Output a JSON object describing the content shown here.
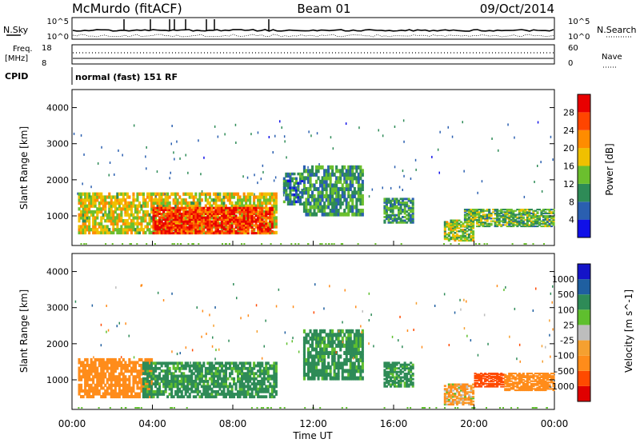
{
  "header": {
    "site": "McMurdo (fitACF)",
    "beam": "Beam 01",
    "date": "09/Oct/2014"
  },
  "top_panel": {
    "left_label": "N.Sky",
    "right_label": "N.Search",
    "left_ticks": [
      "10^5",
      "10^0"
    ],
    "right_ticks": [
      "10^5",
      "10^0"
    ],
    "freq_label": "Freq.",
    "freq_unit": "[MHz]",
    "freq_ticks": [
      "18",
      "8"
    ],
    "nave_label": "Nave",
    "nave_ticks": [
      "60",
      "0"
    ],
    "cpid_label": "CPID",
    "cpid_text": "normal (fast) 151 RF"
  },
  "colors": {
    "power": [
      "#1010e8",
      "#2a5fb0",
      "#2e8b57",
      "#6bbf2e",
      "#f0c000",
      "#ff8c00",
      "#ff4500",
      "#e80000"
    ],
    "velocity": [
      "#e00000",
      "#ff4a00",
      "#ff8c1a",
      "#f5a030",
      "#bdbdbd",
      "#5fbf2e",
      "#2e8b57",
      "#1f5fa0",
      "#1414c8"
    ]
  },
  "chart_data": [
    {
      "type": "heatmap",
      "ylabel": "Slant Range [km]",
      "xlabel": "Time UT",
      "x_ticks": [
        "00:00",
        "04:00",
        "08:00",
        "12:00",
        "16:00",
        "20:00",
        "00:00"
      ],
      "y_ticks": [
        "1000",
        "2000",
        "3000",
        "4000"
      ],
      "xlim": [
        0,
        24
      ],
      "ylim": [
        180,
        4500
      ],
      "colorbar": {
        "label": "Power [dB]",
        "ticks": [
          "4",
          "8",
          "12",
          "16",
          "20",
          "24",
          "28"
        ],
        "range": [
          0,
          30
        ]
      },
      "regions": [
        {
          "t": [
            0.3,
            10.2
          ],
          "r": [
            500,
            1650
          ],
          "v": 16
        },
        {
          "t": [
            4.0,
            10.0
          ],
          "r": [
            500,
            1250
          ],
          "v": 26
        },
        {
          "t": [
            10.5,
            11.5
          ],
          "r": [
            1300,
            2200
          ],
          "v": 8
        },
        {
          "t": [
            11.5,
            14.5
          ],
          "r": [
            1000,
            2400
          ],
          "v": 10
        },
        {
          "t": [
            15.5,
            17.0
          ],
          "r": [
            800,
            1500
          ],
          "v": 10
        },
        {
          "t": [
            18.5,
            20.0
          ],
          "r": [
            300,
            900
          ],
          "v": 14
        },
        {
          "t": [
            19.5,
            24.0
          ],
          "r": [
            700,
            1200
          ],
          "v": 12
        }
      ]
    },
    {
      "type": "heatmap",
      "ylabel": "Slant Range [km]",
      "xlabel": "Time UT",
      "x_ticks": [
        "00:00",
        "04:00",
        "08:00",
        "12:00",
        "16:00",
        "20:00",
        "00:00"
      ],
      "y_ticks": [
        "1000",
        "2000",
        "3000",
        "4000"
      ],
      "xlim": [
        0,
        24
      ],
      "ylim": [
        180,
        4500
      ],
      "colorbar": {
        "label": "Velocity [m s^-1]",
        "ticks": [
          "1000",
          "500",
          "100",
          "25",
          "-25",
          "-100",
          "-500",
          "-1000"
        ],
        "range": [
          -1000,
          1000
        ]
      },
      "regions": [
        {
          "t": [
            0.3,
            4.0
          ],
          "r": [
            500,
            1600
          ],
          "v": -300
        },
        {
          "t": [
            3.5,
            10.2
          ],
          "r": [
            500,
            1500
          ],
          "v": 200
        },
        {
          "t": [
            11.5,
            14.5
          ],
          "r": [
            1000,
            2400
          ],
          "v": 200
        },
        {
          "t": [
            15.5,
            17.0
          ],
          "r": [
            800,
            1500
          ],
          "v": 200
        },
        {
          "t": [
            18.5,
            20.0
          ],
          "r": [
            300,
            900
          ],
          "v": -100
        },
        {
          "t": [
            20.0,
            21.5
          ],
          "r": [
            800,
            1200
          ],
          "v": -700
        },
        {
          "t": [
            21.5,
            24.0
          ],
          "r": [
            700,
            1200
          ],
          "v": -300
        }
      ]
    }
  ],
  "panel_ticks": [
    "00:00",
    "04:00",
    "08:00",
    "12:00",
    "16:00",
    "20:00",
    "00:00"
  ],
  "x_axis_title": "Time UT"
}
